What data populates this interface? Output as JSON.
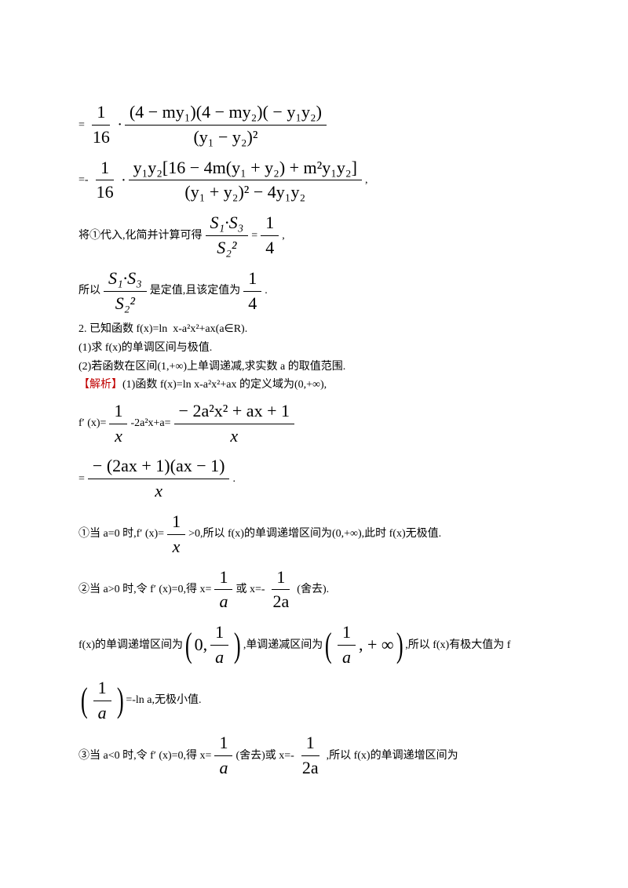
{
  "eq1_prefix": "=",
  "eq1_num": "(4 − my₁)(4 − my₂)( − y₁y₂)",
  "eq1_den": "(y₁ − y₂)²",
  "eq2_prefix": "=-",
  "eq2_num": "y₁y₂[16 − 4m(y₁ + y₂) + m²y₁y₂]",
  "eq2_den": "(y₁ + y₂)² − 4y₁y₂",
  "eq2_suffix": ",",
  "line3_a": "将①代入,化简并计算可得",
  "ratio_num": "S₁·S₃",
  "ratio_den": "S₂²",
  "eq_sign": "=",
  "quarter_num": "1",
  "quarter_den": "4",
  "line3_b": ",",
  "line4_a": "所以",
  "line4_b": "是定值,且该定值为",
  "line4_c": ".",
  "p2_title": "2. 已知函数 f(x)=ln  x-a²x²+ax(a∈R).",
  "p2_q1": "(1)求 f(x)的单调区间与极值.",
  "p2_q2": "(2)若函数在区间(1,+∞)上单调递减,求实数 a 的取值范围.",
  "sol_label": "【解析】",
  "sol_1": "(1)函数 f(x)=ln x-a²x²+ax 的定义域为(0,+∞),",
  "fprime_a": "f′ (x)=",
  "fprime_mid": "-2a²x+a=",
  "fprime_num2": "− 2a²x² + ax + 1",
  "fprime_denx": "x",
  "fprime_num3": "− (2ax + 1)(ax − 1)",
  "fprime_suffix": ".",
  "case1_a": "①当 a=0 时,f′ (x)=",
  "case1_b": ">0,所以 f(x)的单调递增区间为(0,+∞),此时 f(x)无极值.",
  "case2_a": "②当 a>0 时,令 f′ (x)=0,得 x=",
  "case2_b": "或 x=-",
  "case2_c": "(舍去).",
  "one": "1",
  "a": "a",
  "two_a": "2a",
  "x": "x",
  "sixteen": "16",
  "line_inc_a": "f(x)的单调递增区间为",
  "line_inc_b": ",单调递减区间为",
  "interval1_inner": "0, ",
  "interval2_b": ", + ∞",
  "line_inc_c": ",所以 f(x)有极大值为 f",
  "line_ln": "=-ln a,无极小值.",
  "case3_a": "③当 a<0 时,令 f′ (x)=0,得 x=",
  "case3_b": "(舍去)或 x=-",
  "case3_c": ",所以 f(x)的单调递增区间为"
}
